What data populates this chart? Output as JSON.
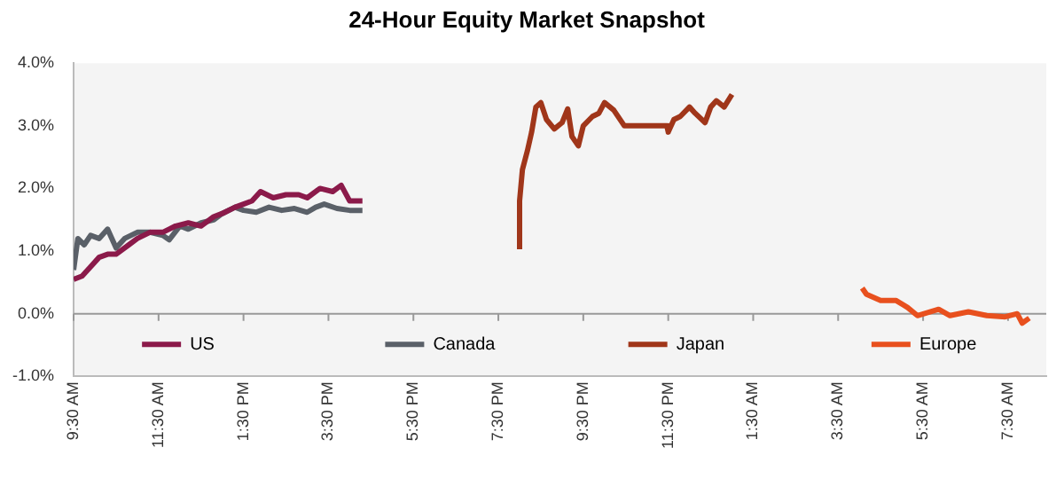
{
  "chart_data": {
    "type": "line",
    "title": "24-Hour Equity Market Snapshot",
    "xlim": [
      "--01-01T09:30",
      "--01-02T08:24"
    ],
    "xticks": [
      {
        "value": "--01-01T09:30",
        "label": "9:30 AM"
      },
      {
        "value": "--01-01T11:30",
        "label": "11:30 AM"
      },
      {
        "value": "--01-01T13:30",
        "label": "1:30 PM"
      },
      {
        "value": "--01-01T15:30",
        "label": "3:30 PM"
      },
      {
        "value": "--01-01T17:30",
        "label": "5:30 PM"
      },
      {
        "value": "--01-01T19:30",
        "label": "7:30 PM"
      },
      {
        "value": "--01-01T21:30",
        "label": "9:30 PM"
      },
      {
        "value": "--01-01T23:30",
        "label": "11:30 PM"
      },
      {
        "value": "--01-02T01:30",
        "label": "1:30 AM"
      },
      {
        "value": "--01-02T03:30",
        "label": "3:30 AM"
      },
      {
        "value": "--01-02T05:30",
        "label": "5:30 AM"
      },
      {
        "value": "--01-02T07:30",
        "label": "7:30 AM"
      }
    ],
    "ylim": [
      -1,
      4
    ],
    "yticks": [
      {
        "value": -1,
        "label": "-1.0%"
      },
      {
        "value": 0,
        "label": "0.0%"
      },
      {
        "value": 1,
        "label": "1.0%"
      },
      {
        "value": 2,
        "label": "2.0%"
      },
      {
        "value": 3,
        "label": "3.0%"
      },
      {
        "value": 4,
        "label": "4.0%"
      }
    ],
    "ref_lines": [
      {
        "axis": "y",
        "value": 0,
        "color": "#999999"
      }
    ],
    "legend": "bottom",
    "marker": "none",
    "series": [
      {
        "name": "US",
        "color": "#8b1a4a",
        "x": [
          "--01-01T09:30",
          "--01-01T09:42",
          "--01-01T09:54",
          "--01-01T10:06",
          "--01-01T10:18",
          "--01-01T10:30",
          "--01-01T10:48",
          "--01-01T11:00",
          "--01-01T11:18",
          "--01-01T11:36",
          "--01-01T11:54",
          "--01-01T12:12",
          "--01-01T12:30",
          "--01-01T12:48",
          "--01-01T13:00",
          "--01-01T13:18",
          "--01-01T13:30",
          "--01-01T13:42",
          "--01-01T13:54",
          "--01-01T14:12",
          "--01-01T14:30",
          "--01-01T14:48",
          "--01-01T15:00",
          "--01-01T15:18",
          "--01-01T15:36",
          "--01-01T15:48",
          "--01-01T16:00",
          "--01-01T16:18"
        ],
        "values": [
          0.55,
          0.6,
          0.75,
          0.9,
          0.95,
          0.95,
          1.1,
          1.2,
          1.3,
          1.3,
          1.4,
          1.45,
          1.4,
          1.55,
          1.6,
          1.7,
          1.75,
          1.8,
          1.95,
          1.85,
          1.9,
          1.9,
          1.85,
          2.0,
          1.95,
          2.05,
          1.8,
          1.8
        ]
      },
      {
        "name": "Canada",
        "color": "#5a6068",
        "x": [
          "--01-01T09:30",
          "--01-01T09:36",
          "--01-01T09:45",
          "--01-01T09:54",
          "--01-01T10:06",
          "--01-01T10:18",
          "--01-01T10:30",
          "--01-01T10:42",
          "--01-01T11:00",
          "--01-01T11:18",
          "--01-01T11:36",
          "--01-01T11:45",
          "--01-01T12:00",
          "--01-01T12:12",
          "--01-01T12:30",
          "--01-01T12:48",
          "--01-01T13:00",
          "--01-01T13:18",
          "--01-01T13:30",
          "--01-01T13:48",
          "--01-01T14:06",
          "--01-01T14:24",
          "--01-01T14:42",
          "--01-01T15:00",
          "--01-01T15:12",
          "--01-01T15:24",
          "--01-01T15:42",
          "--01-01T16:00",
          "--01-01T16:18"
        ],
        "values": [
          0.7,
          1.2,
          1.1,
          1.25,
          1.2,
          1.35,
          1.05,
          1.2,
          1.3,
          1.3,
          1.25,
          1.18,
          1.4,
          1.35,
          1.45,
          1.5,
          1.6,
          1.7,
          1.65,
          1.62,
          1.7,
          1.65,
          1.68,
          1.62,
          1.7,
          1.75,
          1.68,
          1.65,
          1.65
        ]
      },
      {
        "name": "Japan",
        "color": "#a0361a",
        "x": [
          "--01-01T20:00",
          "--01-01T20:00",
          "--01-01T20:04",
          "--01-01T20:11",
          "--01-01T20:17",
          "--01-01T20:23",
          "--01-01T20:30",
          "--01-01T20:38",
          "--01-01T20:49",
          "--01-01T21:00",
          "--01-01T21:08",
          "--01-01T21:14",
          "--01-01T21:23",
          "--01-01T21:30",
          "--01-01T21:43",
          "--01-01T21:52",
          "--01-01T22:00",
          "--01-01T22:13",
          "--01-01T22:28",
          "--01-01T23:28",
          "--01-01T23:30",
          "--01-01T23:38",
          "--01-01T23:47",
          "--01-02T00:00",
          "--01-02T00:08",
          "--01-02T00:22",
          "--01-02T00:30",
          "--01-02T00:38",
          "--01-02T00:49",
          "--01-02T01:00"
        ],
        "values": [
          1.03,
          1.8,
          2.3,
          2.6,
          2.9,
          3.3,
          3.37,
          3.1,
          2.95,
          3.05,
          3.27,
          2.83,
          2.68,
          3.0,
          3.15,
          3.2,
          3.37,
          3.25,
          3.0,
          3.0,
          2.9,
          3.1,
          3.15,
          3.3,
          3.2,
          3.05,
          3.3,
          3.4,
          3.3,
          3.5
        ]
      },
      {
        "name": "Europe",
        "color": "#e8501e",
        "x": [
          "--01-02T04:04",
          "--01-02T04:10",
          "--01-02T04:30",
          "--01-02T04:52",
          "--01-02T05:08",
          "--01-02T05:22",
          "--01-02T05:52",
          "--01-02T06:08",
          "--01-02T06:34",
          "--01-02T07:00",
          "--01-02T07:26",
          "--01-02T07:43",
          "--01-02T07:50",
          "--01-02T08:00"
        ],
        "values": [
          0.41,
          0.31,
          0.21,
          0.21,
          0.1,
          -0.03,
          0.07,
          -0.03,
          0.03,
          -0.03,
          -0.05,
          0,
          -0.15,
          -0.07
        ]
      }
    ]
  }
}
